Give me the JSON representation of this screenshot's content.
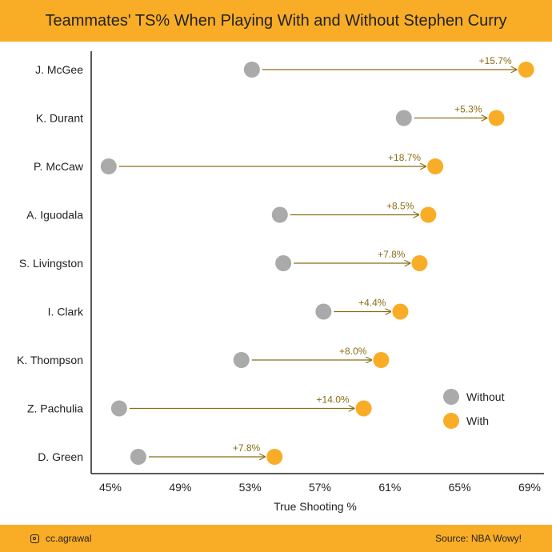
{
  "header": {
    "title": "Teammates' TS% When Playing With and Without Stephen Curry"
  },
  "footer": {
    "handle": "cc.agrawal",
    "source": "Source: NBA Wowy!"
  },
  "colors": {
    "accent": "#f9ad26",
    "without": "#aaaaaa",
    "with": "#f9ad26",
    "arrow": "#8a6d14"
  },
  "chart_data": {
    "type": "dumbbell",
    "xlabel": "True Shooting %",
    "xlim": [
      44,
      69.5
    ],
    "xticks": [
      45,
      49,
      53,
      57,
      61,
      65,
      69
    ],
    "xtick_labels": [
      "45%",
      "49%",
      "53%",
      "57%",
      "61%",
      "65%",
      "69%"
    ],
    "legend": {
      "position": "right",
      "entries": [
        "Without",
        "With"
      ]
    },
    "series": [
      {
        "name": "Without",
        "color": "#aaaaaa"
      },
      {
        "name": "With",
        "color": "#f9ad26"
      }
    ],
    "categories": [
      "J. McGee",
      "K. Durant",
      "P. McCaw",
      "A. Iguodala",
      "S. Livingston",
      "I. Clark",
      "K. Thompson",
      "Z. Pachulia",
      "D. Green"
    ],
    "rows": [
      {
        "player": "J. McGee",
        "without": 53.1,
        "with": 68.8,
        "change": "+15.7%"
      },
      {
        "player": "K. Durant",
        "without": 61.8,
        "with": 67.1,
        "change": "+5.3%"
      },
      {
        "player": "P. McCaw",
        "without": 44.9,
        "with": 63.6,
        "change": "+18.7%"
      },
      {
        "player": "A. Iguodala",
        "without": 54.7,
        "with": 63.2,
        "change": "+8.5%"
      },
      {
        "player": "S. Livingston",
        "without": 54.9,
        "with": 62.7,
        "change": "+7.8%"
      },
      {
        "player": "I. Clark",
        "without": 57.2,
        "with": 61.6,
        "change": "+4.4%"
      },
      {
        "player": "K. Thompson",
        "without": 52.5,
        "with": 60.5,
        "change": "+8.0%"
      },
      {
        "player": "Z. Pachulia",
        "without": 45.5,
        "with": 59.5,
        "change": "+14.0%"
      },
      {
        "player": "D. Green",
        "without": 46.6,
        "with": 54.4,
        "change": "+7.8%"
      }
    ]
  }
}
